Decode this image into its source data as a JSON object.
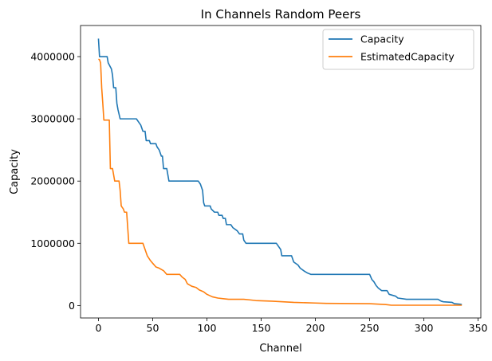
{
  "chart_data": {
    "type": "line",
    "title": "In Channels Random Peers",
    "xlabel": "Channel",
    "ylabel": "Capacity",
    "xlim": [
      -16.5,
      352.5
    ],
    "ylim": [
      -200000,
      4500000
    ],
    "x_ticks": [
      0,
      50,
      100,
      150,
      200,
      250,
      300,
      350
    ],
    "y_ticks": [
      0,
      1000000,
      2000000,
      3000000,
      4000000
    ],
    "x_tick_labels": [
      "0",
      "50",
      "100",
      "150",
      "200",
      "250",
      "300",
      "350"
    ],
    "y_tick_labels": [
      "0",
      "1000000",
      "2000000",
      "3000000",
      "4000000"
    ],
    "grid": false,
    "legend_position": "upper right",
    "series": [
      {
        "name": "Capacity",
        "color": "#1f77b4",
        "points": [
          [
            0,
            4290000
          ],
          [
            1,
            4000000
          ],
          [
            8,
            4000000
          ],
          [
            9,
            3900000
          ],
          [
            12,
            3800000
          ],
          [
            13,
            3700000
          ],
          [
            14,
            3500000
          ],
          [
            16,
            3500000
          ],
          [
            17,
            3250000
          ],
          [
            18,
            3150000
          ],
          [
            20,
            3000000
          ],
          [
            35,
            3000000
          ],
          [
            37,
            2950000
          ],
          [
            39,
            2900000
          ],
          [
            41,
            2800000
          ],
          [
            43,
            2800000
          ],
          [
            44,
            2650000
          ],
          [
            47,
            2650000
          ],
          [
            48,
            2600000
          ],
          [
            53,
            2600000
          ],
          [
            54,
            2550000
          ],
          [
            56,
            2500000
          ],
          [
            58,
            2400000
          ],
          [
            59,
            2400000
          ],
          [
            60,
            2200000
          ],
          [
            63,
            2200000
          ],
          [
            64,
            2100000
          ],
          [
            65,
            2000000
          ],
          [
            92,
            2000000
          ],
          [
            94,
            1950000
          ],
          [
            96,
            1850000
          ],
          [
            97,
            1650000
          ],
          [
            98,
            1600000
          ],
          [
            103,
            1600000
          ],
          [
            104,
            1550000
          ],
          [
            107,
            1500000
          ],
          [
            110,
            1500000
          ],
          [
            111,
            1450000
          ],
          [
            114,
            1450000
          ],
          [
            115,
            1400000
          ],
          [
            117,
            1400000
          ],
          [
            118,
            1300000
          ],
          [
            122,
            1300000
          ],
          [
            124,
            1250000
          ],
          [
            128,
            1200000
          ],
          [
            130,
            1150000
          ],
          [
            133,
            1150000
          ],
          [
            134,
            1050000
          ],
          [
            136,
            1000000
          ],
          [
            138,
            1000000
          ],
          [
            139,
            1000000
          ],
          [
            140,
            1000000
          ],
          [
            164,
            1000000
          ],
          [
            166,
            950000
          ],
          [
            168,
            900000
          ],
          [
            169,
            800000
          ],
          [
            178,
            800000
          ],
          [
            180,
            700000
          ],
          [
            184,
            650000
          ],
          [
            186,
            600000
          ],
          [
            190,
            550000
          ],
          [
            193,
            520000
          ],
          [
            196,
            500000
          ],
          [
            250,
            500000
          ],
          [
            252,
            420000
          ],
          [
            254,
            380000
          ],
          [
            256,
            320000
          ],
          [
            258,
            280000
          ],
          [
            261,
            240000
          ],
          [
            266,
            240000
          ],
          [
            268,
            180000
          ],
          [
            274,
            150000
          ],
          [
            276,
            120000
          ],
          [
            284,
            100000
          ],
          [
            313,
            100000
          ],
          [
            316,
            70000
          ],
          [
            318,
            60000
          ],
          [
            326,
            50000
          ],
          [
            328,
            30000
          ],
          [
            334,
            20000
          ],
          [
            335,
            15000
          ]
        ]
      },
      {
        "name": "EstimatedCapacity",
        "color": "#ff7f0e",
        "points": [
          [
            0,
            3960000
          ],
          [
            1,
            3950000
          ],
          [
            2,
            3900000
          ],
          [
            3,
            3500000
          ],
          [
            4,
            3250000
          ],
          [
            5,
            2980000
          ],
          [
            10,
            2980000
          ],
          [
            11,
            2200000
          ],
          [
            13,
            2200000
          ],
          [
            14,
            2100000
          ],
          [
            15,
            2000000
          ],
          [
            19,
            2000000
          ],
          [
            20,
            1850000
          ],
          [
            21,
            1600000
          ],
          [
            23,
            1550000
          ],
          [
            24,
            1500000
          ],
          [
            26,
            1500000
          ],
          [
            27,
            1250000
          ],
          [
            28,
            1000000
          ],
          [
            41,
            1000000
          ],
          [
            43,
            900000
          ],
          [
            45,
            800000
          ],
          [
            48,
            720000
          ],
          [
            50,
            680000
          ],
          [
            53,
            620000
          ],
          [
            56,
            600000
          ],
          [
            60,
            560000
          ],
          [
            63,
            500000
          ],
          [
            75,
            500000
          ],
          [
            77,
            460000
          ],
          [
            80,
            420000
          ],
          [
            82,
            350000
          ],
          [
            86,
            310000
          ],
          [
            90,
            290000
          ],
          [
            93,
            250000
          ],
          [
            97,
            220000
          ],
          [
            100,
            180000
          ],
          [
            105,
            140000
          ],
          [
            110,
            120000
          ],
          [
            115,
            110000
          ],
          [
            120,
            100000
          ],
          [
            134,
            100000
          ],
          [
            140,
            90000
          ],
          [
            145,
            80000
          ],
          [
            160,
            70000
          ],
          [
            170,
            60000
          ],
          [
            175,
            55000
          ],
          [
            180,
            50000
          ],
          [
            200,
            40000
          ],
          [
            210,
            35000
          ],
          [
            250,
            30000
          ],
          [
            255,
            25000
          ],
          [
            260,
            20000
          ],
          [
            265,
            15000
          ],
          [
            270,
            5000
          ],
          [
            300,
            5000
          ],
          [
            335,
            5000
          ]
        ]
      }
    ]
  }
}
